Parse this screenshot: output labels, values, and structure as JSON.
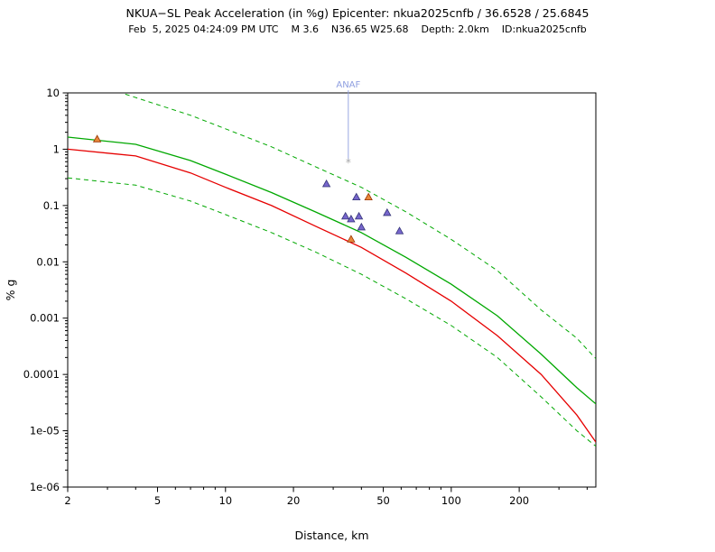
{
  "header": {
    "title": "NKUA−SL Peak Acceleration (in %g) Epicenter: nkua2025cnfb / 36.6528 / 25.6845",
    "subtitle": "Feb  5, 2025 04:24:09 PM UTC    M 3.6    N36.65 W25.68    Depth: 2.0km    ID:nkua2025cnfb"
  },
  "chart_data": {
    "type": "line",
    "title": "NKUA−SL Peak Acceleration (in %g) Epicenter: nkua2025cnfb / 36.6528 / 25.6845",
    "subtitle": "Feb  5, 2025 04:24:09 PM UTC    M 3.6    N36.65 W25.68    Depth: 2.0km    ID:nkua2025cnfb",
    "xlabel": "Distance, km",
    "ylabel": "% g",
    "xscale": "log",
    "yscale": "log",
    "xlim": [
      2,
      437
    ],
    "ylim": [
      1e-06,
      10
    ],
    "grid": false,
    "legend_position": "none",
    "xticks": [
      2,
      5,
      10,
      20,
      50,
      100,
      200
    ],
    "xtick_labels": [
      "2",
      "5",
      "10",
      "20",
      "50",
      "100",
      "200"
    ],
    "yticks": [
      10,
      1,
      0.1,
      0.01,
      0.001,
      0.0001,
      1e-05,
      1e-06
    ],
    "ytick_labels": [
      "10",
      "1",
      "0.1",
      "0.01",
      "0.001",
      "0.0001",
      "1e-05",
      "1e-06"
    ],
    "series": [
      {
        "name": "gmpe-median",
        "color": "#00a800",
        "style": "solid",
        "points": [
          [
            2,
            1.64
          ],
          [
            4,
            1.22
          ],
          [
            7,
            0.63
          ],
          [
            10,
            0.36
          ],
          [
            16,
            0.17
          ],
          [
            25,
            0.077
          ],
          [
            40,
            0.033
          ],
          [
            63,
            0.012
          ],
          [
            100,
            0.004
          ],
          [
            160,
            0.0011
          ],
          [
            250,
            0.00023
          ],
          [
            360,
            5.8e-05
          ],
          [
            437,
            3e-05
          ]
        ]
      },
      {
        "name": "gmpe-upper-bound",
        "color": "#00a800",
        "style": "dashed",
        "points": [
          [
            3.6,
            9.5
          ],
          [
            5,
            6.2
          ],
          [
            7,
            4.0
          ],
          [
            10,
            2.3
          ],
          [
            16,
            1.1
          ],
          [
            25,
            0.49
          ],
          [
            40,
            0.21
          ],
          [
            63,
            0.077
          ],
          [
            100,
            0.025
          ],
          [
            160,
            0.007
          ],
          [
            250,
            0.0014
          ],
          [
            360,
            0.00044
          ],
          [
            437,
            0.00019
          ]
        ]
      },
      {
        "name": "gmpe-lower-bound",
        "color": "#00a800",
        "style": "dashed",
        "points": [
          [
            2,
            0.31
          ],
          [
            4,
            0.23
          ],
          [
            7,
            0.12
          ],
          [
            10,
            0.069
          ],
          [
            16,
            0.033
          ],
          [
            25,
            0.015
          ],
          [
            40,
            0.006
          ],
          [
            63,
            0.0022
          ],
          [
            100,
            0.00074
          ],
          [
            160,
            0.0002
          ],
          [
            250,
            4e-05
          ],
          [
            360,
            1e-05
          ],
          [
            437,
            5.3e-06
          ]
        ]
      },
      {
        "name": "gmpe-alt-median",
        "color": "#e60000",
        "style": "solid",
        "points": [
          [
            2,
            1.0
          ],
          [
            4,
            0.76
          ],
          [
            7,
            0.38
          ],
          [
            10,
            0.21
          ],
          [
            16,
            0.1
          ],
          [
            25,
            0.043
          ],
          [
            40,
            0.018
          ],
          [
            63,
            0.0063
          ],
          [
            100,
            0.002
          ],
          [
            160,
            0.00049
          ],
          [
            250,
            0.0001
          ],
          [
            360,
            1.9e-05
          ],
          [
            437,
            6.3e-06
          ]
        ]
      }
    ],
    "scatter": [
      {
        "name": "station-observations-blue",
        "marker": "triangle",
        "color": "#7766cc",
        "edge": "#333377",
        "points": [
          [
            28,
            0.24
          ],
          [
            38,
            0.14
          ],
          [
            34,
            0.064
          ],
          [
            36,
            0.057
          ],
          [
            39,
            0.064
          ],
          [
            40,
            0.041
          ],
          [
            52,
            0.074
          ],
          [
            59,
            0.035
          ]
        ]
      },
      {
        "name": "station-observations-orange",
        "marker": "triangle",
        "color": "#e8883a",
        "edge": "#993300",
        "points": [
          [
            2.7,
            1.5
          ],
          [
            43,
            0.14
          ],
          [
            36,
            0.025
          ]
        ]
      }
    ],
    "annotations": [
      {
        "text": "ANAF",
        "color": "#8f9fe0",
        "x": 35,
        "point_y": 0.62,
        "marker": "*",
        "marker_color": "#aaaaaa"
      }
    ]
  }
}
